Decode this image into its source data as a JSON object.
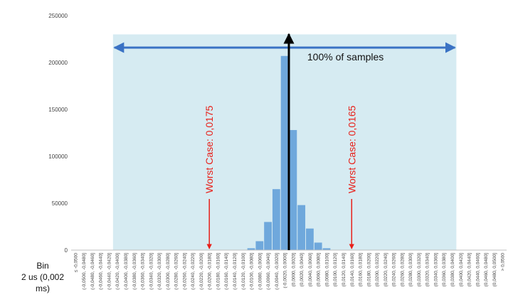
{
  "chart_data": {
    "type": "bar",
    "ylim": [
      0,
      250000
    ],
    "yticks": [
      0,
      50000,
      100000,
      150000,
      200000,
      250000
    ],
    "xlabel_line1": "Bin",
    "xlabel_line2": "2 us (0,002 ms)",
    "categories": [
      "≤ -0,0500",
      "(-0,0500, -0,0480]",
      "(-0,0480, -0,0460]",
      "(-0,0460, -0,0440]",
      "(-0,0440, -0,0420]",
      "(-0,0420, -0,0400]",
      "(-0,0400, -0,0380]",
      "(-0,0380, -0,0360]",
      "(-0,0360, -0,0340]",
      "(-0,0340, -0,0320]",
      "(-0,0320, -0,0300]",
      "(-0,0300, -0,0280]",
      "(-0,0280, -0,0260]",
      "(-0,0260, -0,0240]",
      "(-0,0240, -0,0220]",
      "(-0,0220, -0,0200]",
      "(-0,0200, -0,0180]",
      "(-0,0180, -0,0160]",
      "(-0,0160, -0,0140]",
      "(-0,0140, -0,0120]",
      "(-0,0120, -0,0100]",
      "(-0,0100, -0,0080]",
      "(-0,0080, -0,0060]",
      "(-0,0060, -0,0040]",
      "(-0,0040, -0,0020]",
      "(-0,0020, 0,0000]",
      "(0,0000, 0,0020]",
      "(0,0020, 0,0040]",
      "(0,0040, 0,0060]",
      "(0,0060, 0,0080]",
      "(0,0080, 0,0100]",
      "(0,0100, 0,0120]",
      "(0,0120, 0,0140]",
      "(0,0140, 0,0160]",
      "(0,0160, 0,0180]",
      "(0,0180, 0,0200]",
      "(0,0200, 0,0220]",
      "(0,0220, 0,0240]",
      "(0,0240, 0,0260]",
      "(0,0260, 0,0280]",
      "(0,0280, 0,0300]",
      "(0,0300, 0,0320]",
      "(0,0320, 0,0340]",
      "(0,0340, 0,0360]",
      "(0,0360, 0,0380]",
      "(0,0380, 0,0400]",
      "(0,0400, 0,0420]",
      "(0,0420, 0,0440]",
      "(0,0440, 0,0460]",
      "(0,0460, 0,0480]",
      "(0,0480, 0,0500]",
      "> 0,0500"
    ],
    "values": [
      0,
      0,
      0,
      0,
      0,
      0,
      0,
      0,
      0,
      0,
      0,
      0,
      0,
      0,
      0,
      0,
      0,
      0,
      0,
      0,
      0,
      2000,
      9500,
      30000,
      65000,
      207000,
      128000,
      48000,
      23000,
      8000,
      2000,
      0,
      0,
      0,
      0,
      0,
      0,
      0,
      0,
      0,
      0,
      0,
      0,
      0,
      0,
      0,
      0,
      0,
      0,
      0,
      0,
      0
    ],
    "bar_color": "#6fa8dc",
    "annotations": {
      "range_band": {
        "from": "(-0,0420, -0,0400]",
        "to": "(0,0380, 0,0400]",
        "color": "#d6ebf2"
      },
      "range_arrow_label": "100% of samples",
      "range_arrow_color": "#3a72c4",
      "center_arrow_at": "(0,0000, 0,0020]",
      "center_arrow_color": "#000000",
      "worst_case_left": {
        "label": "Worst Case: 0,0175",
        "at": "(-0,0200, -0,0180]",
        "color": "#e8201a"
      },
      "worst_case_right": {
        "label": "Worst Case: 0,0165",
        "at": "(0,0140, 0,0160]",
        "color": "#e8201a"
      }
    }
  }
}
